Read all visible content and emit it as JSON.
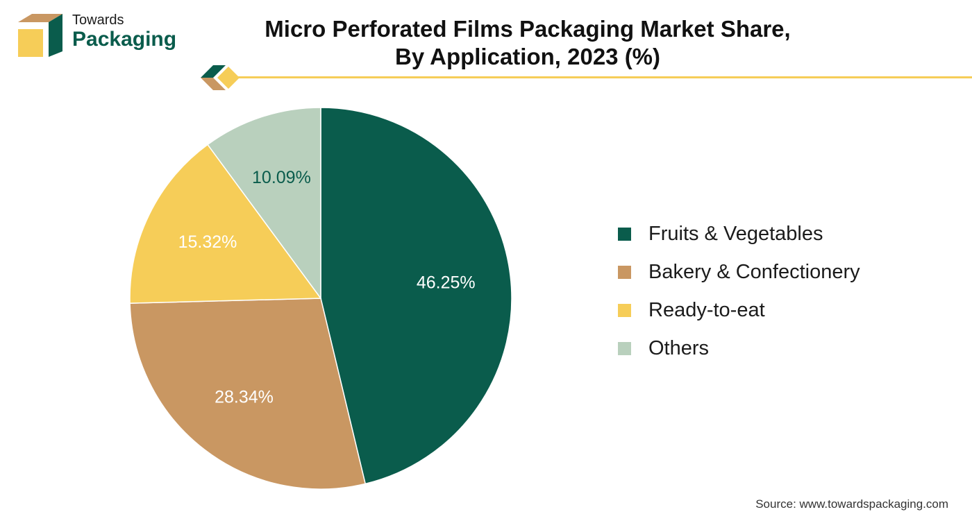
{
  "logo": {
    "line1": "Towards",
    "line2": "Packaging"
  },
  "title_line1": "Micro Perforated Films Packaging Market Share,",
  "title_line2": "By Application, 2023 (%)",
  "source": "Source: www.towardspackaging.com",
  "colors": {
    "dark_green": "#0a5c4c",
    "tan": "#c99762",
    "yellow": "#f6cd58",
    "sage": "#b9d0bd"
  },
  "chart_data": {
    "type": "pie",
    "title": "Micro Perforated Films Packaging Market Share, By Application, 2023 (%)",
    "legend_position": "right",
    "slices": [
      {
        "label": "Fruits & Vegetables",
        "value": 46.25,
        "value_label": "46.25%",
        "color": "#0a5c4c",
        "label_color": "#ffffff"
      },
      {
        "label": "Bakery & Confectionery",
        "value": 28.34,
        "value_label": "28.34%",
        "color": "#c99762",
        "label_color": "#ffffff"
      },
      {
        "label": "Ready-to-eat",
        "value": 15.32,
        "value_label": "15.32%",
        "color": "#f6cd58",
        "label_color": "#ffffff"
      },
      {
        "label": "Others",
        "value": 10.09,
        "value_label": "10.09%",
        "color": "#b9d0bd",
        "label_color": "#0a5c4c"
      }
    ]
  }
}
